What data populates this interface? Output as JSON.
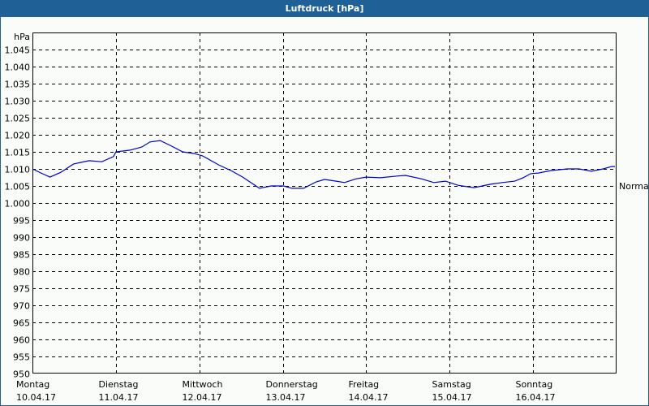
{
  "window": {
    "title": "Luftdruck [hPa]",
    "title_bar_color": "#1f6096"
  },
  "chart_data": {
    "type": "line",
    "title": "Luftdruck [hPa]",
    "ylabel": "hPa",
    "xlabel": "",
    "ylim": [
      950,
      1050
    ],
    "grid": true,
    "yticks": [
      "950",
      "955",
      "960",
      "965",
      "970",
      "975",
      "980",
      "985",
      "990",
      "995",
      "1.000",
      "1.005",
      "1.010",
      "1.015",
      "1.020",
      "1.025",
      "1.030",
      "1.035",
      "1.040",
      "1.045"
    ],
    "yticks_values": [
      950,
      955,
      960,
      965,
      970,
      975,
      980,
      985,
      990,
      995,
      1000,
      1005,
      1010,
      1015,
      1020,
      1025,
      1030,
      1035,
      1040,
      1045
    ],
    "categories": [
      {
        "day": "Montag",
        "date": "10.04.17"
      },
      {
        "day": "Dienstag",
        "date": "11.04.17"
      },
      {
        "day": "Mittwoch",
        "date": "12.04.17"
      },
      {
        "day": "Donnerstag",
        "date": "13.04.17"
      },
      {
        "day": "Freitag",
        "date": "14.04.17"
      },
      {
        "day": "Samstag",
        "date": "15.04.17"
      },
      {
        "day": "Sonntag",
        "date": "16.04.17"
      }
    ],
    "reference_line": {
      "label": "Normal",
      "value": 1005
    },
    "series": [
      {
        "name": "Luftdruck",
        "color": "#0000cc",
        "x_days": [
          0.0,
          0.1,
          0.21,
          0.34,
          0.49,
          0.58,
          0.68,
          0.83,
          0.97,
          1.0,
          1.17,
          1.31,
          1.41,
          1.53,
          1.65,
          1.8,
          1.94,
          2.04,
          2.23,
          2.38,
          2.52,
          2.72,
          2.86,
          3.01,
          3.11,
          3.25,
          3.4,
          3.5,
          3.64,
          3.74,
          3.88,
          4.0,
          4.17,
          4.37,
          4.47,
          4.66,
          4.81,
          4.95,
          5.1,
          5.29,
          5.49,
          5.63,
          5.78,
          5.88,
          5.97,
          6.07,
          6.21,
          6.41,
          6.55,
          6.7,
          6.84,
          6.94,
          7.01,
          7.07
        ],
        "values": [
          1010.0,
          1008.8,
          1007.6,
          1009.0,
          1011.4,
          1011.9,
          1012.4,
          1012.1,
          1013.6,
          1015.0,
          1015.5,
          1016.4,
          1017.9,
          1018.3,
          1016.9,
          1015.0,
          1014.5,
          1013.8,
          1011.2,
          1009.5,
          1007.6,
          1004.3,
          1005.0,
          1005.0,
          1004.3,
          1004.3,
          1006.2,
          1006.9,
          1006.4,
          1006.0,
          1007.1,
          1007.6,
          1007.4,
          1007.9,
          1008.1,
          1007.1,
          1006.0,
          1006.4,
          1005.2,
          1004.5,
          1005.5,
          1006.0,
          1006.4,
          1007.4,
          1008.6,
          1008.8,
          1009.5,
          1010.0,
          1010.0,
          1009.3,
          1010.0,
          1010.7,
          1010.7,
          1010.7
        ]
      }
    ]
  }
}
